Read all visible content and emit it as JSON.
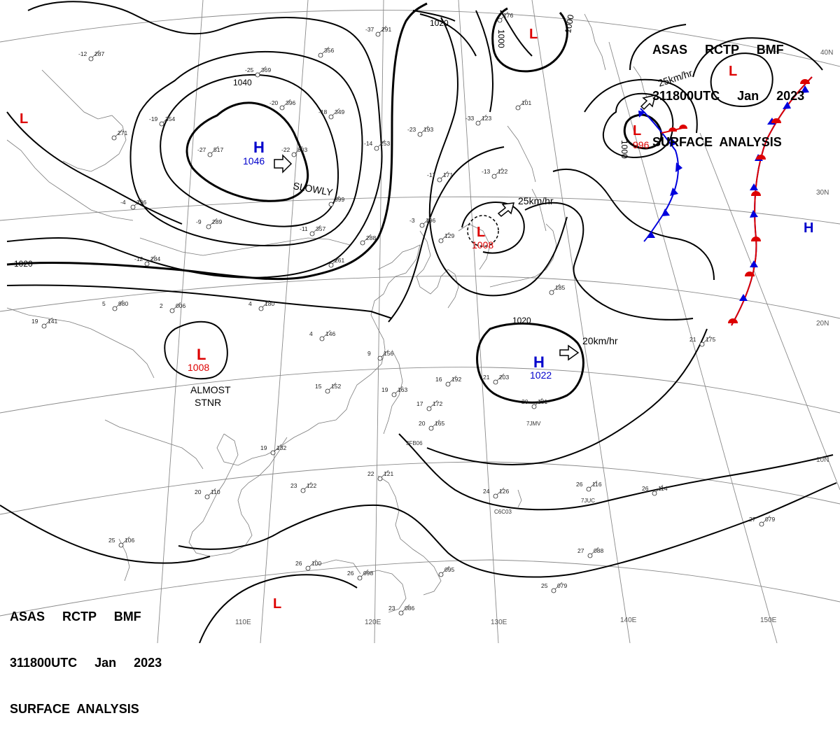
{
  "header": {
    "line1": "ASAS     RCTP     BMF",
    "line2": "311800UTC     Jan     2023",
    "line3": "SURFACE  ANALYSIS"
  },
  "colors": {
    "high": "#0000cc",
    "low": "#dd0000",
    "cold_front": "#0000dd",
    "warm_front": "#dd0000",
    "isobar": "#000000",
    "grid": "#888888",
    "coast": "#777777"
  },
  "lat_labels": [
    "40N",
    "30N",
    "20N",
    "10N"
  ],
  "lon_labels": [
    "110E",
    "120E",
    "130E",
    "140E",
    "150E"
  ],
  "systems": [
    {
      "type": "H",
      "pressure": "1046"
    },
    {
      "type": "L",
      "pressure": "1008",
      "note1": "ALMOST",
      "note2": "STNR"
    },
    {
      "type": "L",
      "pressure": "1008",
      "motion": "25km/hr"
    },
    {
      "type": "H",
      "pressure": "1022",
      "motion": "20km/hr"
    },
    {
      "type": "L",
      "pressure": "996",
      "motion": "25km/hr"
    },
    {
      "type": "L",
      "pressure": ""
    },
    {
      "type": "L",
      "pressure": ""
    },
    {
      "type": "L",
      "pressure": ""
    },
    {
      "type": "H",
      "pressure": ""
    }
  ],
  "motion_text": {
    "slowly": "SLOWLY"
  },
  "isobar_labels": [
    "1040",
    "1020",
    "1020",
    "1020",
    "1000",
    "1000",
    "1000"
  ],
  "stations": [
    {
      "t": "-37",
      "p": "291"
    },
    {
      "t": "-12",
      "p": "287"
    },
    {
      "t": "-25",
      "p": "369"
    },
    {
      "t": "-20",
      "p": "396"
    },
    {
      "t": "-18",
      "p": "349"
    },
    {
      "t": "-19",
      "p": "354"
    },
    {
      "t": "-22",
      "p": "503"
    },
    {
      "t": "-27",
      "p": "517"
    },
    {
      "t": "-14",
      "p": "253"
    },
    {
      "t": "-23",
      "p": "193"
    },
    {
      "t": "-17",
      "p": "171"
    },
    {
      "t": "-13",
      "p": "122"
    },
    {
      "t": "-33",
      "p": "123"
    },
    {
      "t": "",
      "p": "356"
    },
    {
      "t": "",
      "p": "399"
    },
    {
      "t": "-11",
      "p": "357"
    },
    {
      "t": "",
      "p": "271"
    },
    {
      "t": "-4",
      "p": "296"
    },
    {
      "t": "-9",
      "p": "289"
    },
    {
      "t": "-12",
      "p": "284"
    },
    {
      "t": "-3",
      "p": "196"
    },
    {
      "t": "",
      "p": "288"
    },
    {
      "t": "",
      "p": "261"
    },
    {
      "t": "4",
      "p": "180"
    },
    {
      "t": "2",
      "p": "006"
    },
    {
      "t": "5",
      "p": "980"
    },
    {
      "t": "19",
      "p": "141"
    },
    {
      "t": "4",
      "p": "146"
    },
    {
      "t": "9",
      "p": "156"
    },
    {
      "t": "15",
      "p": "152"
    },
    {
      "t": "19",
      "p": "163"
    },
    {
      "t": "17",
      "p": "172"
    },
    {
      "t": "16",
      "p": "192"
    },
    {
      "t": "21",
      "p": "203"
    },
    {
      "t": "20",
      "p": "131"
    },
    {
      "t": "20",
      "p": "165"
    },
    {
      "t": "19",
      "p": "132"
    },
    {
      "t": "20",
      "p": "110"
    },
    {
      "t": "23",
      "p": "122"
    },
    {
      "t": "22",
      "p": "121"
    },
    {
      "t": "24",
      "p": "126"
    },
    {
      "t": "26",
      "p": "116"
    },
    {
      "t": "26",
      "p": "114"
    },
    {
      "t": "27",
      "p": "079"
    },
    {
      "t": "27",
      "p": "088"
    },
    {
      "t": "25",
      "p": "079"
    },
    {
      "t": "25",
      "p": "106"
    },
    {
      "t": "26",
      "p": "100"
    },
    {
      "t": "26",
      "p": "098"
    },
    {
      "t": "23",
      "p": "086"
    },
    {
      "t": "",
      "p": "095"
    },
    {
      "t": "21",
      "p": "175"
    },
    {
      "t": "",
      "p": "185"
    },
    {
      "t": "",
      "p": "176"
    },
    {
      "t": "",
      "p": "101"
    },
    {
      "t": "",
      "p": "129"
    }
  ],
  "ship_ids": [
    "7JMV",
    "3FB06",
    "C6C03",
    "7JUC"
  ]
}
